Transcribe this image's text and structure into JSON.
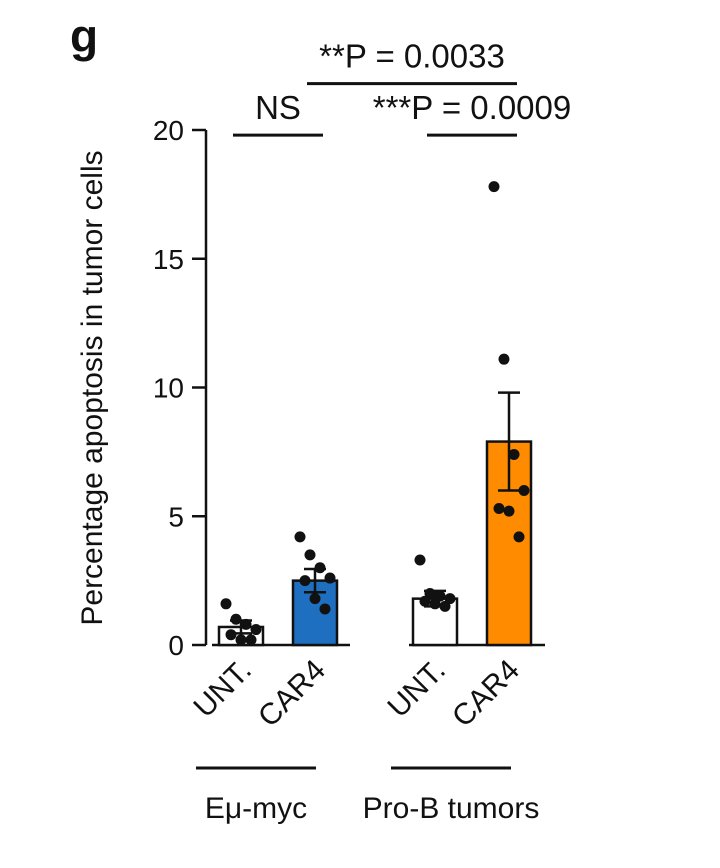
{
  "panel_label": "g",
  "chart_data": {
    "type": "bar",
    "title": "",
    "xlabel": "",
    "ylabel": "Percentage apoptosis in tumor cells",
    "ylim": [
      0,
      20
    ],
    "yticks": [
      0,
      5,
      10,
      15,
      20
    ],
    "groups": [
      {
        "name": "Eμ-myc",
        "categories": [
          "UNT.",
          "CAR4"
        ]
      },
      {
        "name": "Pro-B tumors",
        "categories": [
          "UNT.",
          "CAR4"
        ]
      }
    ],
    "categories": [
      "UNT.",
      "CAR4",
      "UNT.",
      "CAR4"
    ],
    "values": [
      0.7,
      2.5,
      1.8,
      7.9
    ],
    "errors": [
      0.25,
      0.45,
      0.3,
      1.9
    ],
    "colors": [
      "#ffffff",
      "#1f6fc0",
      "#ffffff",
      "#ff8c00"
    ],
    "points": [
      [
        1.6,
        1.0,
        0.8,
        0.6,
        0.4,
        0.2,
        0.2
      ],
      [
        4.2,
        3.5,
        3.0,
        2.6,
        2.5,
        1.8,
        1.4
      ],
      [
        3.3,
        2.0,
        1.9,
        1.8,
        1.7,
        1.6,
        1.5
      ],
      [
        17.8,
        11.1,
        7.4,
        6.0,
        5.3,
        5.2,
        4.2
      ]
    ],
    "annotations": [
      {
        "text": "NS",
        "from": 0,
        "to": 1,
        "level": 19.8
      },
      {
        "text": "**P = 0.0033",
        "from": 1,
        "to": 3,
        "level": 21.8
      },
      {
        "text": "***P = 0.0009",
        "from": 2,
        "to": 3,
        "level": 19.8
      }
    ]
  }
}
